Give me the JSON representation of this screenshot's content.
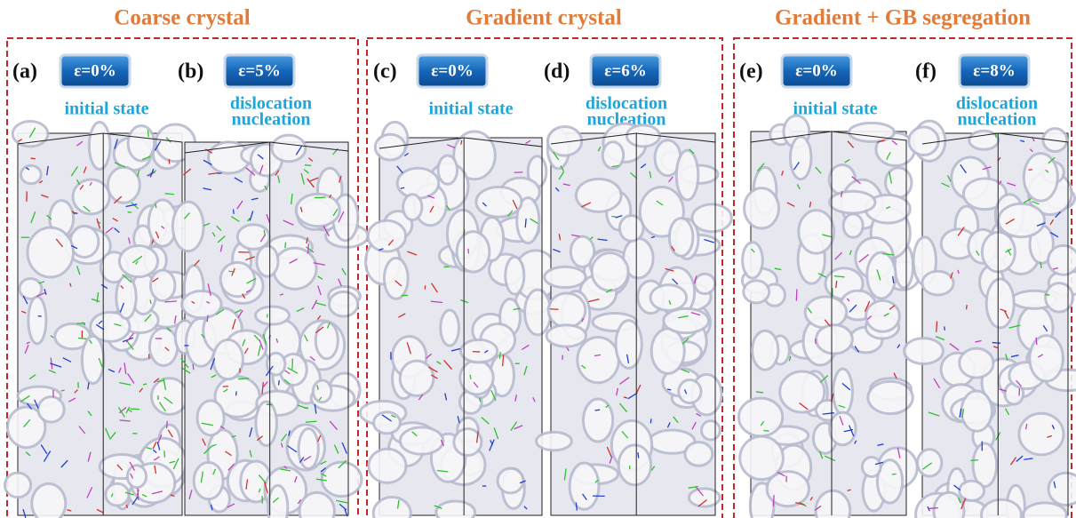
{
  "groups": [
    {
      "title": "Coarse crystal",
      "panels": [
        {
          "label": "(a)",
          "strain": "ε=0%",
          "caption": [
            "initial state"
          ]
        },
        {
          "label": "(b)",
          "strain": "ε=5%",
          "caption": [
            "dislocation",
            "nucleation"
          ]
        }
      ]
    },
    {
      "title": "Gradient crystal",
      "panels": [
        {
          "label": "(c)",
          "strain": "ε=0%",
          "caption": [
            "initial state"
          ]
        },
        {
          "label": "(d)",
          "strain": "ε=6%",
          "caption": [
            "dislocation",
            "nucleation"
          ]
        }
      ]
    },
    {
      "title": "Gradient + GB segregation",
      "panels": [
        {
          "label": "(e)",
          "strain": "ε=0%",
          "caption": [
            "initial state"
          ]
        },
        {
          "label": "(f)",
          "strain": "ε=8%",
          "caption": [
            "dislocation",
            "nucleation"
          ]
        }
      ]
    }
  ]
}
